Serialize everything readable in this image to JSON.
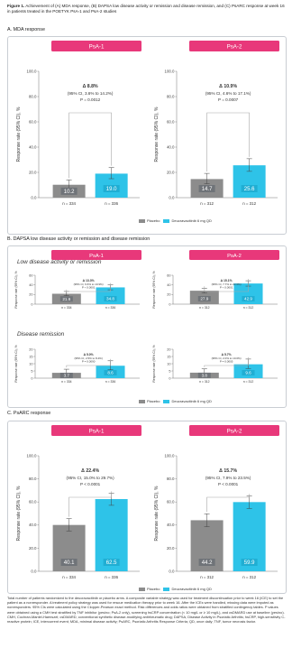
{
  "caption": {
    "label": "Figure 1.",
    "text": "Achievement of (A) MDA response, (B) DAPSA low disease activity or remission and disease remission, and (C) PsARC response at week 16 in patients treated in the POETYK PsA-1 and PsA-2 studies"
  },
  "sections": {
    "a": "A. MDA response",
    "b": "B. DAPSA low disease activity or remission and disease remission",
    "b_low": "Low disease activity or remission",
    "b_rem": "Disease remission",
    "c": "C. PsARC response"
  },
  "legend": {
    "placebo": "Placebo",
    "deucra": "Deucravacitinib 6 mg QD"
  },
  "colors": {
    "placebo": "#8c8c8c",
    "deucra": "#2ec3e8",
    "header": "#e8387a",
    "bracket": "#a8a8a8"
  },
  "chart_data": [
    {
      "id": "a1",
      "type": "bar",
      "panel": "PsA-1",
      "ylabel": "Response rate (95% CI), %",
      "ylim": [
        0,
        100
      ],
      "yticks": [
        "0.0",
        "20.0",
        "40.0",
        "60.0",
        "80.0",
        "100.0"
      ],
      "categories": [
        "Placebo",
        "Deucravacitinib 6 mg QD"
      ],
      "values": [
        10.2,
        19.0
      ],
      "labels": [
        "10.2",
        "19.0"
      ],
      "ci": [
        [
          7.2,
          14.0
        ],
        [
          15.0,
          23.8
        ]
      ],
      "n": [
        "n = 334",
        "n = 336"
      ],
      "delta": "Δ 8.8%",
      "delta_ci": "(95% CI, 3.6% to 14.2%)",
      "pvalue": "P = 0.0012"
    },
    {
      "id": "a2",
      "type": "bar",
      "panel": "PsA-2",
      "ylabel": "Response rate (95% CI), %",
      "ylim": [
        0,
        100
      ],
      "yticks": [
        "0.0",
        "20.0",
        "40.0",
        "60.0",
        "80.0",
        "100.0"
      ],
      "categories": [
        "Placebo",
        "Deucravacitinib 6 mg QD"
      ],
      "values": [
        14.7,
        25.6
      ],
      "labels": [
        "14.7",
        "25.6"
      ],
      "ci": [
        [
          11.0,
          19.2
        ],
        [
          20.8,
          30.8
        ]
      ],
      "n": [
        "n = 312",
        "n = 312"
      ],
      "delta": "Δ 10.9%",
      "delta_ci": "(95% CI, 4.6% to 17.1%)",
      "pvalue": "P = 0.0007"
    },
    {
      "id": "b1",
      "type": "bar",
      "panel": "PsA-1",
      "ylabel": "Response rate (95% CI), %",
      "ylim": [
        0,
        60
      ],
      "yticks": [
        "0",
        "20",
        "40",
        "60"
      ],
      "categories": [
        "Placebo",
        "Deucravacitinib 6 mg QD"
      ],
      "values": [
        21.6,
        34.8
      ],
      "labels": [
        "21.6",
        "34.8"
      ],
      "ci": [
        [
          17.4,
          26.4
        ],
        [
          29.8,
          40.0
        ]
      ],
      "n": [
        "n = 334",
        "n = 336"
      ],
      "delta": "Δ 13.3%",
      "delta_ci": "(95% CI, 6.6% to 19.9%)",
      "pvalue": "P < 0.0001"
    },
    {
      "id": "b2",
      "type": "bar",
      "panel": "PsA-2",
      "ylabel": "Response rate (95% CI), %",
      "ylim": [
        0,
        60
      ],
      "yticks": [
        "0",
        "20",
        "40",
        "60"
      ],
      "categories": [
        "Placebo",
        "Deucravacitinib 6 mg QD"
      ],
      "values": [
        27.9,
        42.9
      ],
      "labels": [
        "27.9",
        "42.9"
      ],
      "ci": [
        [
          23.0,
          33.2
        ],
        [
          37.4,
          48.6
        ]
      ],
      "n": [
        "n = 312",
        "n = 312"
      ],
      "delta": "Δ 15.1%",
      "delta_ci": "(95% CI, 7.7% to 22.6%)",
      "pvalue": "P < 0.0001"
    },
    {
      "id": "b3",
      "type": "bar",
      "panel": "PsA-1",
      "ylabel": "Response rate (95% CI), %",
      "ylim": [
        0,
        20
      ],
      "yticks": [
        "0",
        "5",
        "10",
        "15",
        "20"
      ],
      "categories": [
        "Placebo",
        "Deucravacitinib 6 mg QD"
      ],
      "values": [
        3.7,
        8.6
      ],
      "labels": [
        "3.7",
        "8.6"
      ],
      "ci": [
        [
          2.0,
          6.2
        ],
        [
          5.8,
          12.0
        ]
      ],
      "n": [
        "n = 334",
        "n = 336"
      ],
      "delta": "Δ 5.0%",
      "delta_ci": "(95% CI, 2.5% to 8.4%)",
      "pvalue": "P = 0.0090"
    },
    {
      "id": "b4",
      "type": "bar",
      "panel": "PsA-2",
      "ylabel": "Response rate (95% CI), %",
      "ylim": [
        0,
        20
      ],
      "yticks": [
        "0",
        "5",
        "10",
        "15",
        "20"
      ],
      "categories": [
        "Placebo",
        "Deucravacitinib 6 mg QD"
      ],
      "values": [
        3.8,
        9.6
      ],
      "labels": [
        "3.8",
        "9.6"
      ],
      "ci": [
        [
          2.1,
          6.4
        ],
        [
          6.6,
          13.2
        ]
      ],
      "n": [
        "n = 312",
        "n = 312"
      ],
      "delta": "Δ 5.7%",
      "delta_ci": "(95% CI, 2.0% to 10.0%)",
      "pvalue": "P = 0.0005"
    },
    {
      "id": "c1",
      "type": "bar",
      "panel": "PsA-1",
      "ylabel": "Response rate (95% CI), %",
      "ylim": [
        0,
        100
      ],
      "yticks": [
        "0.0",
        "20.0",
        "40.0",
        "60.0",
        "80.0",
        "100.0"
      ],
      "categories": [
        "Placebo",
        "Deucravacitinib 6 mg QD"
      ],
      "values": [
        40.1,
        62.5
      ],
      "labels": [
        "40.1",
        "62.5"
      ],
      "ci": [
        [
          34.8,
          45.6
        ],
        [
          57.1,
          67.7
        ]
      ],
      "n": [
        "n = 334",
        "n = 336"
      ],
      "delta": "Δ 22.4%",
      "delta_ci": "(95% CI, 15.0% to 29.7%)",
      "pvalue": "P < 0.0001"
    },
    {
      "id": "c2",
      "type": "bar",
      "panel": "PsA-2",
      "ylabel": "Response rate (95% CI), %",
      "ylim": [
        0,
        100
      ],
      "yticks": [
        "0.0",
        "20.0",
        "40.0",
        "60.0",
        "80.0",
        "100.0"
      ],
      "categories": [
        "Placebo",
        "Deucravacitinib 6 mg QD"
      ],
      "values": [
        44.2,
        59.9
      ],
      "labels": [
        "44.2",
        "59.9"
      ],
      "ci": [
        [
          38.6,
          49.8
        ],
        [
          54.3,
          65.3
        ]
      ],
      "n": [
        "n = 312",
        "n = 312"
      ],
      "delta": "Δ 15.7%",
      "delta_ci": "(95% CI, 7.9% to 23.5%)",
      "pvalue": "P < 0.0001"
    }
  ],
  "footnote": "Total number of patients randomized to the deucravacitinib or placebo arms. A composite variable strategy was used for treatment discontinuation prior to week 16 (ICE) to set the patient as a nonresponder. A treatment policy strategy was used for rescue medication therapy prior to week 16. After the ICEs were handled, missing data were imputed as nonresponders. 95% CIs were calculated using the Clopper-Pearson exact method. Risk differences and odds ratios were obtained from stratified contingency tables. P values were obtained using a CMH test stratified by TNF inhibitor (yes/no; PsA-2 only), screening hsCRP concentration (< 10 mg/L or ≥ 10 mg/L), and csDMARD use at baseline (yes/no). CMH, Cochran-Mantel-Haenszel; csDMARD, conventional synthetic disease-modifying antirheumatic drug; DAPSA, Disease Activity in Psoriatic Arthritis; hsCRP, high-sensitivity C-reactive protein; ICE, intercurrent event; MDA, minimal disease activity; PsARC, Psoriatic Arthritis Response Criteria; QD, once daily; TNF, tumor necrosis factor."
}
